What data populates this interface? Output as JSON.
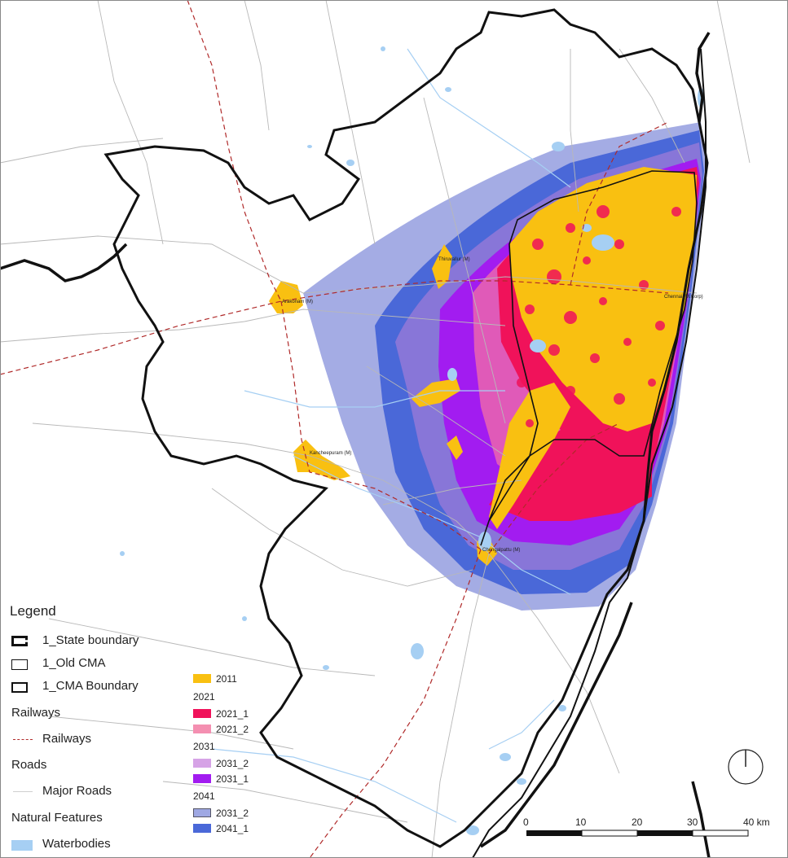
{
  "places": {
    "arakonam": "Arakonam (M)",
    "thiruvallur": "Thiruvallur (M)",
    "chennai": "Chennai (M.Corp)",
    "kancheepuram": "Kancheepuram (M)",
    "chengalpattu": "Chengalpattu (M)"
  },
  "legend": {
    "title": "Legend",
    "state_boundary": "1_State boundary",
    "old_cma": "1_Old CMA",
    "cma_boundary": "1_CMA Boundary",
    "railways_group": "Railways",
    "railways": "Railways",
    "roads_group": "Roads",
    "major_roads": "Major Roads",
    "natural_group": "Natural Features",
    "waterbodies": "Waterbodies"
  },
  "growth_legend": {
    "y2011": "2011",
    "g2021": "2021",
    "y2021_1": "2021_1",
    "y2021_2": "2021_2",
    "g2031": "2031",
    "y2031_2": "2031_2",
    "y2031_1": "2031_1",
    "g2041": "2041",
    "y2041_a": "2031_2",
    "y2041_1": "2041_1"
  },
  "colors": {
    "c2011": "#f9c011",
    "c2021_1": "#f0125a",
    "c2021_2": "#f48fb1",
    "c2031_2": "#d6a3e6",
    "c2031_1": "#a21cf0",
    "c2041_a": "#9fa8e3",
    "c2041_1": "#4a68d8",
    "water": "#a6cff3",
    "railway": "#b02a2a",
    "road": "#b8b8b8"
  },
  "scale": {
    "t0": "0",
    "t10": "10",
    "t20": "20",
    "t30": "30",
    "t40": "40 km"
  },
  "north_icon": "north-arrow-icon"
}
